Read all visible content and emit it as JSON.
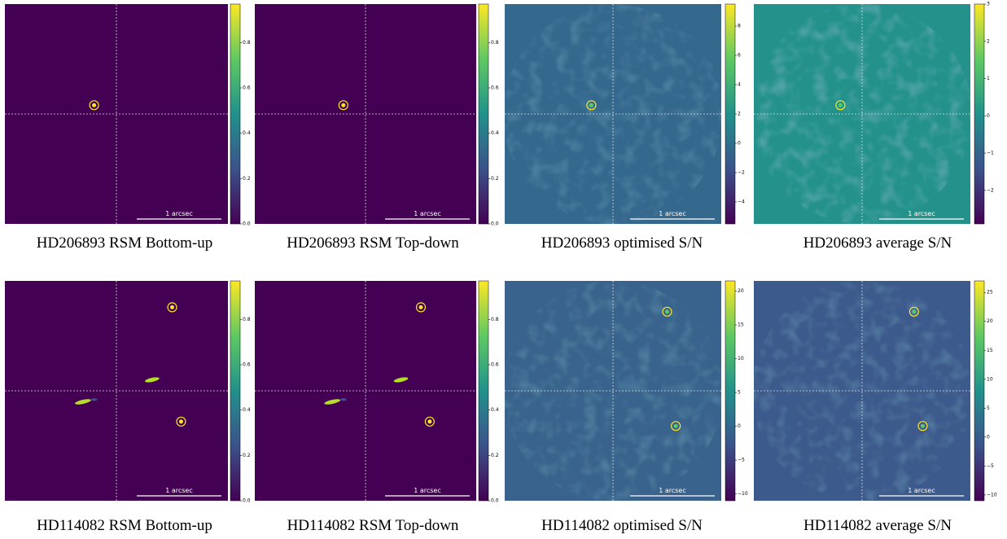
{
  "panels": [
    {
      "caption": "HD206893 RSM Bottom-up",
      "scalebar": "1 arcsec",
      "clim": [
        0,
        0.97
      ],
      "ticks": [
        {
          "value": 0,
          "label": "0.0"
        },
        0.2,
        0.4,
        0.6,
        0.8
      ]
    },
    {
      "caption": "HD206893 RSM Top-down",
      "scalebar": "1 arcsec",
      "clim": [
        0,
        0.97
      ],
      "ticks": [
        {
          "value": 0,
          "label": "0.0"
        },
        0.2,
        0.4,
        0.6,
        0.8
      ]
    },
    {
      "caption": "HD206893 optimised S/N",
      "scalebar": "1 arcsec",
      "clim": [
        -5.5,
        9.5
      ],
      "ticks": [
        {
          "value": -4,
          "label": "−4"
        },
        {
          "value": -2,
          "label": "−2"
        },
        0,
        2,
        4,
        6,
        8
      ]
    },
    {
      "caption": "HD206893 average S/N",
      "scalebar": "1 arcsec",
      "clim": [
        -2.9,
        3
      ],
      "ticks": [
        {
          "value": -2,
          "label": "−2"
        },
        {
          "value": -1,
          "label": "−1"
        },
        0,
        1,
        2,
        3
      ]
    },
    {
      "caption": "HD114082 RSM Bottom-up",
      "scalebar": "1 arcsec",
      "clim": [
        0,
        0.97
      ],
      "ticks": [
        {
          "value": 0,
          "label": "0.0"
        },
        0.2,
        0.4,
        0.6,
        0.8
      ]
    },
    {
      "caption": "HD114082 RSM Top-down",
      "scalebar": "1 arcsec",
      "clim": [
        0,
        0.97
      ],
      "ticks": [
        {
          "value": 0,
          "label": "0.0"
        },
        0.2,
        0.4,
        0.6,
        0.8
      ]
    },
    {
      "caption": "HD114082 optimised S/N",
      "scalebar": "1 arcsec",
      "clim": [
        -11,
        21.5
      ],
      "ticks": [
        {
          "value": -10,
          "label": "−10"
        },
        {
          "value": -5,
          "label": "−5"
        },
        0,
        5,
        10,
        15,
        20
      ]
    },
    {
      "caption": "HD114082 average S/N",
      "scalebar": "1 arcsec",
      "clim": [
        -11,
        27
      ],
      "ticks": [
        {
          "value": -10,
          "label": "−10"
        },
        {
          "value": -5,
          "label": "−5"
        },
        0,
        5,
        10,
        15,
        20,
        25
      ]
    }
  ]
}
